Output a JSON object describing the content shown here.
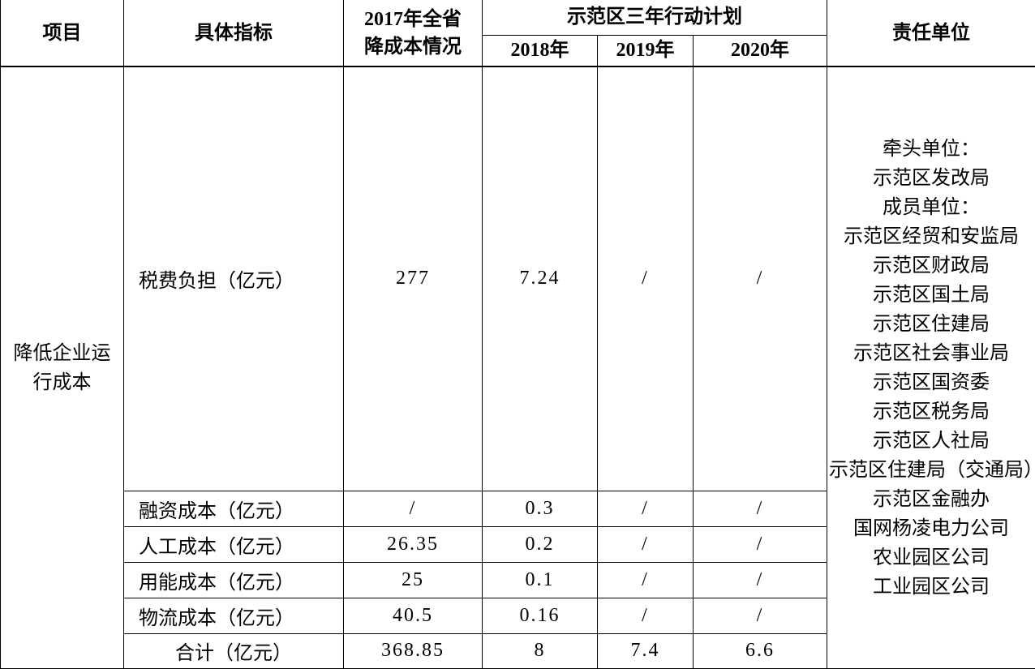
{
  "table": {
    "header": {
      "project": "项目",
      "indicator": "具体指标",
      "y2017_lines": [
        "2017年全省",
        "降成本情况"
      ],
      "plan_group": "示范区三年行动计划",
      "y2018": "2018年",
      "y2019": "2019年",
      "y2020": "2020年",
      "duty": "责任单位"
    },
    "project_lines": [
      "降低企业运",
      "行成本"
    ],
    "rows": [
      {
        "indicator": "税费负担（亿元）",
        "y2017": "277",
        "y2018": "7.24",
        "y2019": "/",
        "y2020": "/"
      },
      {
        "indicator": "融资成本（亿元）",
        "y2017": "/",
        "y2018": "0.3",
        "y2019": "/",
        "y2020": "/"
      },
      {
        "indicator": "人工成本（亿元）",
        "y2017": "26.35",
        "y2018": "0.2",
        "y2019": "/",
        "y2020": "/"
      },
      {
        "indicator": "用能成本（亿元）",
        "y2017": "25",
        "y2018": "0.1",
        "y2019": "/",
        "y2020": "/"
      },
      {
        "indicator": "物流成本（亿元）",
        "y2017": "40.5",
        "y2018": "0.16",
        "y2019": "/",
        "y2020": "/"
      },
      {
        "indicator": "合计（亿元）",
        "y2017": "368.85",
        "y2018": "8",
        "y2019": "7.4",
        "y2020": "6.6"
      }
    ],
    "duty_lines": [
      "牵头单位：",
      "示范区发改局",
      "成员单位：",
      "示范区经贸和安监局",
      "示范区财政局",
      "示范区国土局",
      "示范区住建局",
      "示范区社会事业局",
      "示范区国资委",
      "示范区税务局",
      "示范区人社局",
      "示范区住建局（交通局）",
      "示范区金融办",
      "国网杨凌电力公司",
      "农业园区公司",
      "工业园区公司"
    ]
  },
  "colors": {
    "border": "#000000",
    "text": "#000000",
    "background": "#ffffff"
  }
}
